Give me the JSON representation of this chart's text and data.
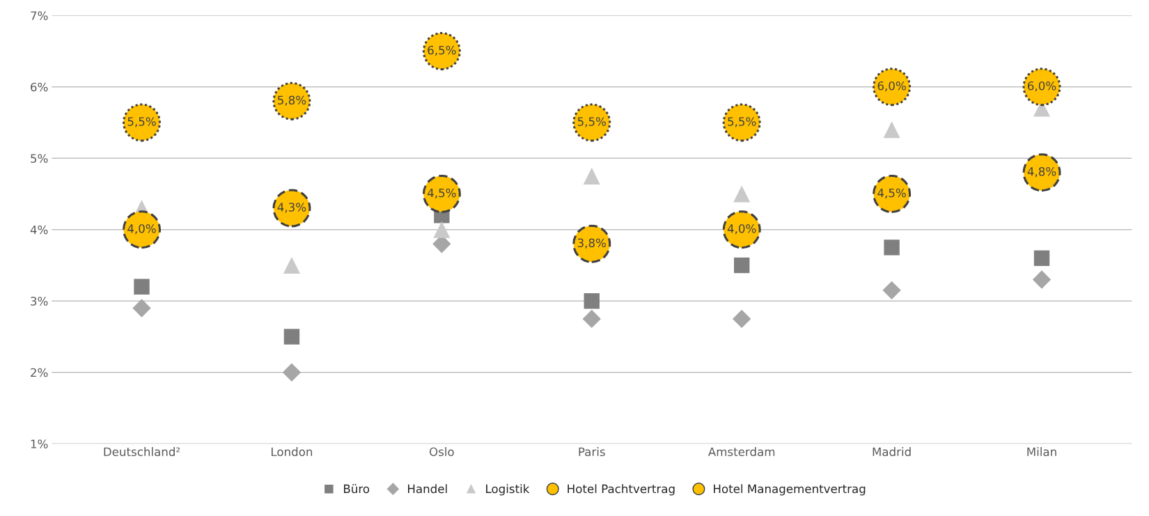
{
  "chart_data": {
    "type": "scatter",
    "categories": [
      "Deutschland²",
      "London",
      "Oslo",
      "Paris",
      "Amsterdam",
      "Madrid",
      "Milan"
    ],
    "series": [
      {
        "name": "Büro",
        "color": "#7f7f7f",
        "marker": "square",
        "values": [
          3.2,
          2.5,
          4.2,
          3.0,
          3.5,
          3.75,
          3.6
        ]
      },
      {
        "name": "Handel",
        "color": "#a6a6a6",
        "marker": "diamond",
        "values": [
          2.9,
          2.0,
          3.8,
          2.75,
          2.75,
          3.15,
          3.3
        ]
      },
      {
        "name": "Logistik",
        "color": "#c9c9c9",
        "marker": "triangle",
        "values": [
          4.3,
          3.5,
          4.0,
          4.75,
          4.5,
          5.4,
          5.7
        ]
      },
      {
        "name": "Hotel Pachtvertrag",
        "color": "#ffc000",
        "marker": "circle",
        "line_style": "dashed",
        "values": [
          4.0,
          4.3,
          4.5,
          3.8,
          4.0,
          4.5,
          4.8
        ],
        "value_labels": [
          "4,0%",
          "4,3%",
          "4,5%",
          "3,8%",
          "4,0%",
          "4,5%",
          "4,8%"
        ]
      },
      {
        "name": "Hotel Managementvertrag",
        "color": "#ffc000",
        "marker": "circle",
        "line_style": "dotted",
        "values": [
          5.5,
          5.8,
          6.5,
          5.5,
          5.5,
          6.0,
          6.0
        ],
        "value_labels": [
          "5,5%",
          "5,8%",
          "6,5%",
          "5,5%",
          "5,5%",
          "6,0%",
          "6,0%"
        ]
      }
    ],
    "ylim": [
      1,
      7
    ],
    "yticks": [
      {
        "value": 1,
        "label": "1%"
      },
      {
        "value": 2,
        "label": "2%"
      },
      {
        "value": 3,
        "label": "3%"
      },
      {
        "value": 4,
        "label": "4%"
      },
      {
        "value": 5,
        "label": "5%"
      },
      {
        "value": 6,
        "label": "6%"
      },
      {
        "value": 7,
        "label": "7%"
      }
    ],
    "grid": "y",
    "legend": "bottom"
  }
}
